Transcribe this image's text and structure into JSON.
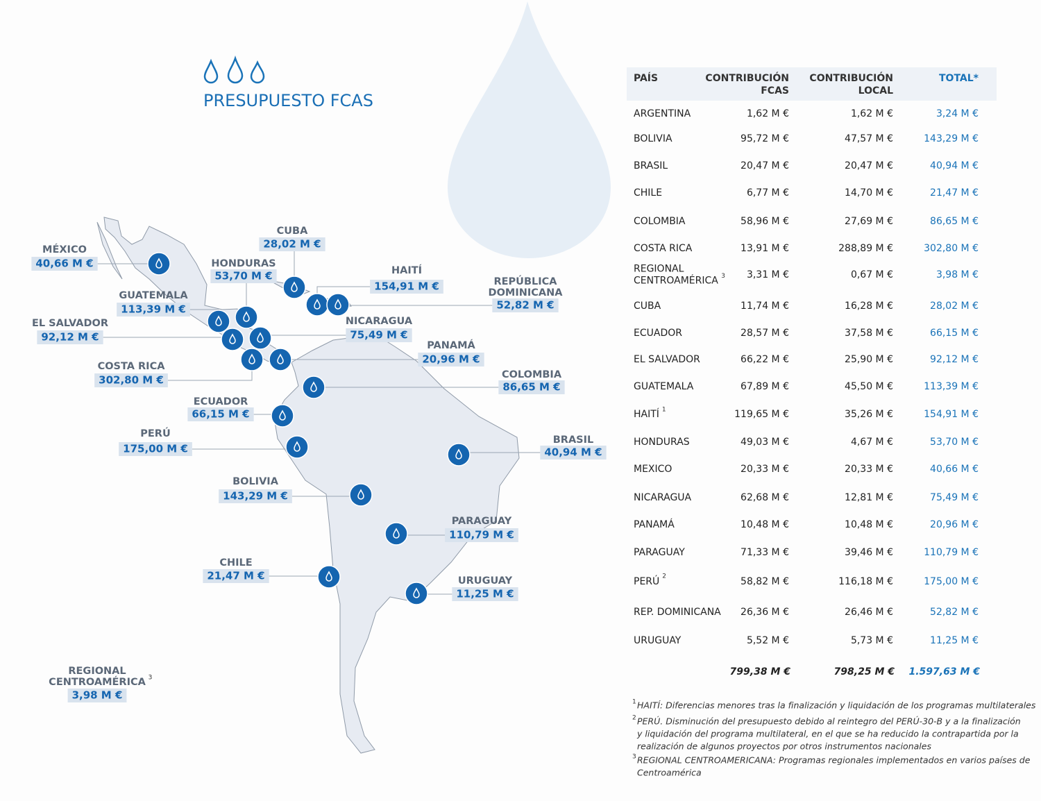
{
  "header": {
    "title": "PRESUPUESTO FCAS"
  },
  "map_labels": [
    {
      "name": [
        "MÉXICO"
      ],
      "value": "40,66 M €"
    },
    {
      "name": [
        "CUBA"
      ],
      "value": "28,02 M €"
    },
    {
      "name": [
        "HONDURAS"
      ],
      "value": "53,70 M €"
    },
    {
      "name": [
        "HAITÍ"
      ],
      "value": "154,91 M €"
    },
    {
      "name": [
        "REPÚBLICA",
        "DOMINICANA"
      ],
      "value": "52,82 M €"
    },
    {
      "name": [
        "GUATEMALA"
      ],
      "value": "113,39 M €"
    },
    {
      "name": [
        "EL SALVADOR"
      ],
      "value": "92,12 M €"
    },
    {
      "name": [
        "NICARAGUA"
      ],
      "value": "75,49 M €"
    },
    {
      "name": [
        "PANAMÁ"
      ],
      "value": "20,96 M €"
    },
    {
      "name": [
        "COSTA RICA"
      ],
      "value": "302,80 M €"
    },
    {
      "name": [
        "COLOMBIA"
      ],
      "value": "86,65 M €"
    },
    {
      "name": [
        "ECUADOR"
      ],
      "value": "66,15 M €"
    },
    {
      "name": [
        "PERÚ"
      ],
      "value": "175,00 M €"
    },
    {
      "name": [
        "BRASIL"
      ],
      "value": "40,94 M €"
    },
    {
      "name": [
        "BOLIVIA"
      ],
      "value": "143,29 M €"
    },
    {
      "name": [
        "PARAGUAY"
      ],
      "value": "110,79 M €"
    },
    {
      "name": [
        "CHILE"
      ],
      "value": "21,47 M €"
    },
    {
      "name": [
        "URUGUAY"
      ],
      "value": "11,25 M €"
    },
    {
      "name": [
        "REGIONAL",
        "CENTROAMÉRICA"
      ],
      "note": "3",
      "value": "3,98 M €"
    }
  ],
  "table": {
    "columns": [
      [
        "PAÍS"
      ],
      [
        "CONTRIBUCIÓN",
        "FCAS"
      ],
      [
        "CONTRIBUCIÓN",
        "LOCAL"
      ],
      [
        "TOTAL*"
      ]
    ],
    "rows": [
      {
        "country": [
          "ARGENTINA"
        ],
        "fcas": "1,62 M €",
        "local": "1,62 M €",
        "total": "3,24 M €"
      },
      {
        "country": [
          "BOLIVIA"
        ],
        "fcas": "95,72 M €",
        "local": "47,57 M €",
        "total": "143,29 M €"
      },
      {
        "country": [
          "BRASIL"
        ],
        "fcas": "20,47 M €",
        "local": "20,47 M €",
        "total": "40,94 M €"
      },
      {
        "country": [
          "CHILE"
        ],
        "fcas": "6,77 M €",
        "local": "14,70 M €",
        "total": "21,47 M €"
      },
      {
        "country": [
          "COLOMBIA"
        ],
        "fcas": "58,96 M €",
        "local": "27,69 M €",
        "total": "86,65 M €"
      },
      {
        "country": [
          "COSTA RICA"
        ],
        "fcas": "13,91 M €",
        "local": "288,89 M €",
        "total": "302,80 M €"
      },
      {
        "country": [
          "REGIONAL",
          "CENTROAMÉRICA"
        ],
        "note": "3",
        "fcas": "3,31 M €",
        "local": "0,67 M €",
        "total": "3,98 M €"
      },
      {
        "country": [
          "CUBA"
        ],
        "fcas": "11,74 M €",
        "local": "16,28 M €",
        "total": "28,02 M €"
      },
      {
        "country": [
          "ECUADOR"
        ],
        "fcas": "28,57 M €",
        "local": "37,58 M €",
        "total": "66,15 M €"
      },
      {
        "country": [
          "EL SALVADOR"
        ],
        "fcas": "66,22 M €",
        "local": "25,90 M €",
        "total": "92,12 M €"
      },
      {
        "country": [
          "GUATEMALA"
        ],
        "fcas": "67,89 M €",
        "local": "45,50 M €",
        "total": "113,39 M €"
      },
      {
        "country": [
          "HAITÍ"
        ],
        "note": "1",
        "fcas": "119,65 M €",
        "local": "35,26 M €",
        "total": "154,91 M €"
      },
      {
        "country": [
          "HONDURAS"
        ],
        "fcas": "49,03 M €",
        "local": "4,67 M €",
        "total": "53,70 M €"
      },
      {
        "country": [
          "MEXICO"
        ],
        "fcas": "20,33 M €",
        "local": "20,33 M €",
        "total": "40,66 M €"
      },
      {
        "country": [
          "NICARAGUA"
        ],
        "fcas": "62,68 M €",
        "local": "12,81 M €",
        "total": "75,49 M €"
      },
      {
        "country": [
          "PANAMÁ"
        ],
        "fcas": "10,48 M €",
        "local": "10,48 M €",
        "total": "20,96 M €"
      },
      {
        "country": [
          "PARAGUAY"
        ],
        "fcas": "71,33 M €",
        "local": "39,46 M €",
        "total": "110,79 M €"
      },
      {
        "country": [
          "PERÚ"
        ],
        "note": "2",
        "fcas": "58,82 M €",
        "local": "116,18 M €",
        "total": "175,00 M €"
      },
      {
        "country": [
          "REP. DOMINICANA"
        ],
        "fcas": "26,36 M €",
        "local": "26,46 M €",
        "total": "52,82 M €"
      },
      {
        "country": [
          "URUGUAY"
        ],
        "fcas": "5,52 M €",
        "local": "5,73 M €",
        "total": "11,25 M €"
      }
    ],
    "totals": {
      "fcas": "799,38  M €",
      "local": "798,25  M €",
      "total": "1.597,63  M €"
    }
  },
  "footnotes": [
    {
      "mark": "1",
      "lines": [
        "HAITÍ: Diferencias menores tras la finalización y liquidación de los programas multilaterales"
      ]
    },
    {
      "mark": "2",
      "lines": [
        "PERÚ. Disminución del presupuesto debido al reintegro del PERÚ-30-B y a la finalización",
        "y liquidación del programa multilateral, en el que se ha reducido la contrapartida por la",
        "realización de algunos proyectos por otros instrumentos nacionales"
      ]
    },
    {
      "mark": "3",
      "lines": [
        "REGIONAL CENTROAMERICANA: Programas regionales implementados en varios países de",
        "Centroamérica"
      ]
    }
  ]
}
